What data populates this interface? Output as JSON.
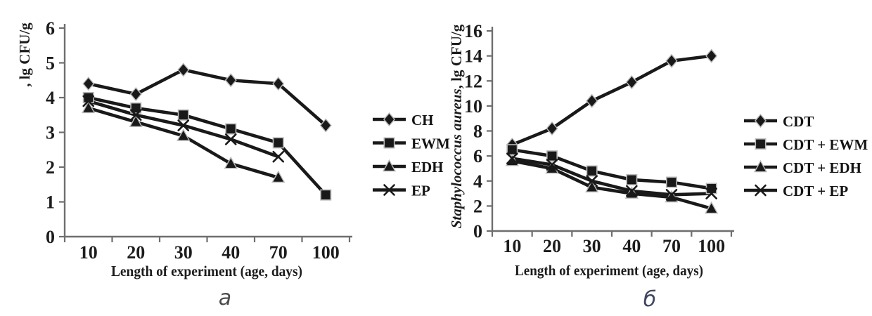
{
  "captions": {
    "left": "а",
    "right": "б"
  },
  "colors": {
    "line": "#191919",
    "axis": "#6e6e6e",
    "marker_edge": "#b9b9b9",
    "text": "#1c1c1c"
  },
  "chart_data": [
    {
      "id": "a",
      "type": "line",
      "title": "",
      "xlabel": "Length of experiment (age, days)",
      "ylabel_italic": "",
      "ylabel": ", lg CFU/g",
      "x_categories": [
        "10",
        "20",
        "30",
        "40",
        "70",
        "100"
      ],
      "ylim": [
        0,
        6
      ],
      "yticks": [
        0,
        1,
        2,
        3,
        4,
        5,
        6
      ],
      "grid": false,
      "legend_position": "right",
      "series": [
        {
          "name": "CH",
          "marker": "diamond",
          "values": [
            4.4,
            4.1,
            4.8,
            4.5,
            4.4,
            3.2
          ]
        },
        {
          "name": "EWM",
          "marker": "square",
          "values": [
            4.0,
            3.7,
            3.5,
            3.1,
            2.7,
            1.2
          ]
        },
        {
          "name": "EDH",
          "marker": "triangle",
          "values": [
            3.7,
            3.3,
            2.9,
            2.1,
            1.7,
            null
          ]
        },
        {
          "name": "EP",
          "marker": "x",
          "values": [
            3.9,
            3.5,
            3.2,
            2.8,
            2.3,
            null
          ]
        }
      ]
    },
    {
      "id": "b",
      "type": "line",
      "title": "",
      "xlabel": "Length of experiment (age, days)",
      "ylabel_italic": "Staphylococcus aureus",
      "ylabel": ", lg CFU/g",
      "x_categories": [
        "10",
        "20",
        "30",
        "40",
        "70",
        "100"
      ],
      "ylim": [
        0,
        16
      ],
      "yticks": [
        0,
        2,
        4,
        6,
        8,
        10,
        12,
        14,
        16
      ],
      "grid": false,
      "legend_position": "right",
      "series": [
        {
          "name": "CDT",
          "marker": "diamond",
          "values": [
            6.9,
            8.2,
            10.4,
            11.9,
            13.6,
            14.0
          ]
        },
        {
          "name": "CDT + EWM",
          "marker": "square",
          "values": [
            6.5,
            6.0,
            4.8,
            4.1,
            3.9,
            3.4
          ]
        },
        {
          "name": "CDT + EDH",
          "marker": "triangle",
          "values": [
            5.6,
            5.0,
            3.5,
            3.0,
            2.7,
            1.8
          ]
        },
        {
          "name": "CDT + EP",
          "marker": "x",
          "values": [
            5.8,
            5.3,
            4.0,
            3.2,
            2.9,
            3.0
          ]
        }
      ]
    }
  ]
}
